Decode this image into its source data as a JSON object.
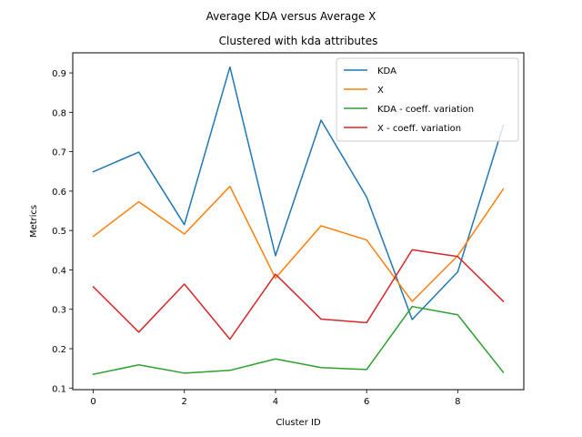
{
  "chart_data": {
    "type": "line",
    "suptitle": "Average KDA versus Average X",
    "title": "Clustered with kda attributes",
    "xlabel": "Cluster ID",
    "ylabel": "Metrics",
    "x": [
      0,
      1,
      2,
      3,
      4,
      5,
      6,
      7,
      8,
      9
    ],
    "xlim": [
      -0.45,
      9.45
    ],
    "ylim": [
      0.096,
      0.951
    ],
    "xticks": [
      0,
      2,
      4,
      6,
      8
    ],
    "yticks": [
      0.1,
      0.2,
      0.3,
      0.4,
      0.5,
      0.6,
      0.7,
      0.8,
      0.9
    ],
    "grid": false,
    "legend_position": "top-right",
    "series": [
      {
        "name": "KDA",
        "color": "#1f77b4",
        "values": [
          0.649,
          0.699,
          0.515,
          0.915,
          0.436,
          0.78,
          0.585,
          0.274,
          0.395,
          0.767
        ]
      },
      {
        "name": "X",
        "color": "#ff7f0e",
        "values": [
          0.485,
          0.573,
          0.491,
          0.612,
          0.379,
          0.512,
          0.476,
          0.32,
          0.436,
          0.605
        ]
      },
      {
        "name": "KDA - coeff. variation",
        "color": "#2ca02c",
        "values": [
          0.135,
          0.159,
          0.138,
          0.145,
          0.174,
          0.152,
          0.147,
          0.307,
          0.286,
          0.14
        ]
      },
      {
        "name": "X - coeff. variation",
        "color": "#d62728",
        "values": [
          0.357,
          0.242,
          0.364,
          0.224,
          0.389,
          0.275,
          0.266,
          0.451,
          0.434,
          0.32
        ]
      }
    ]
  }
}
